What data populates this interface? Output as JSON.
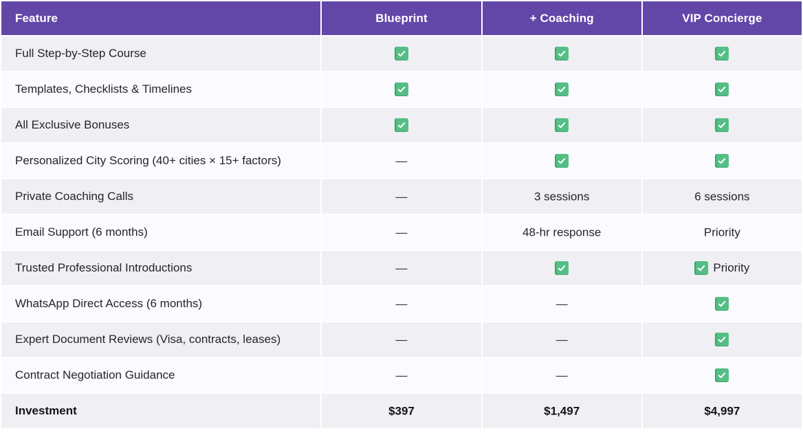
{
  "table": {
    "headers": [
      "Feature",
      "Blueprint",
      "+ Coaching",
      "VIP Concierge"
    ],
    "dash_glyph": "—",
    "colors": {
      "header_bg": "#6247a8",
      "header_text": "#ffffff",
      "row_odd_bg": "#efeff4",
      "row_even_bg": "#fafaff",
      "check_green": "#55be84",
      "check_green_edge": "#3da471",
      "body_text": "#22262c"
    },
    "rows": [
      {
        "feature": "Full Step-by-Step Course",
        "cells": [
          {
            "check": true
          },
          {
            "check": true
          },
          {
            "check": true
          }
        ]
      },
      {
        "feature": "Templates, Checklists & Timelines",
        "cells": [
          {
            "check": true
          },
          {
            "check": true
          },
          {
            "check": true
          }
        ]
      },
      {
        "feature": "All Exclusive Bonuses",
        "cells": [
          {
            "check": true
          },
          {
            "check": true
          },
          {
            "check": true
          }
        ]
      },
      {
        "feature": "Personalized City Scoring (40+ cities × 15+ factors)",
        "cells": [
          {
            "dash": true
          },
          {
            "check": true
          },
          {
            "check": true
          }
        ]
      },
      {
        "feature": "Private Coaching Calls",
        "cells": [
          {
            "dash": true
          },
          {
            "text": "3 sessions"
          },
          {
            "text": "6 sessions"
          }
        ]
      },
      {
        "feature": "Email Support (6 months)",
        "cells": [
          {
            "dash": true
          },
          {
            "text": "48-hr response"
          },
          {
            "text": "Priority"
          }
        ]
      },
      {
        "feature": "Trusted Professional Introductions",
        "cells": [
          {
            "dash": true
          },
          {
            "check": true
          },
          {
            "check": true,
            "text": "Priority"
          }
        ]
      },
      {
        "feature": "WhatsApp Direct Access (6 months)",
        "cells": [
          {
            "dash": true
          },
          {
            "dash": true
          },
          {
            "check": true
          }
        ]
      },
      {
        "feature": "Expert Document Reviews (Visa, contracts, leases)",
        "cells": [
          {
            "dash": true
          },
          {
            "dash": true
          },
          {
            "check": true
          }
        ]
      },
      {
        "feature": "Contract Negotiation Guidance",
        "cells": [
          {
            "dash": true
          },
          {
            "dash": true
          },
          {
            "check": true
          }
        ]
      },
      {
        "feature": "Investment",
        "footer": true,
        "cells": [
          {
            "text": "$397"
          },
          {
            "text": "$1,497"
          },
          {
            "text": "$4,997"
          }
        ]
      }
    ]
  }
}
